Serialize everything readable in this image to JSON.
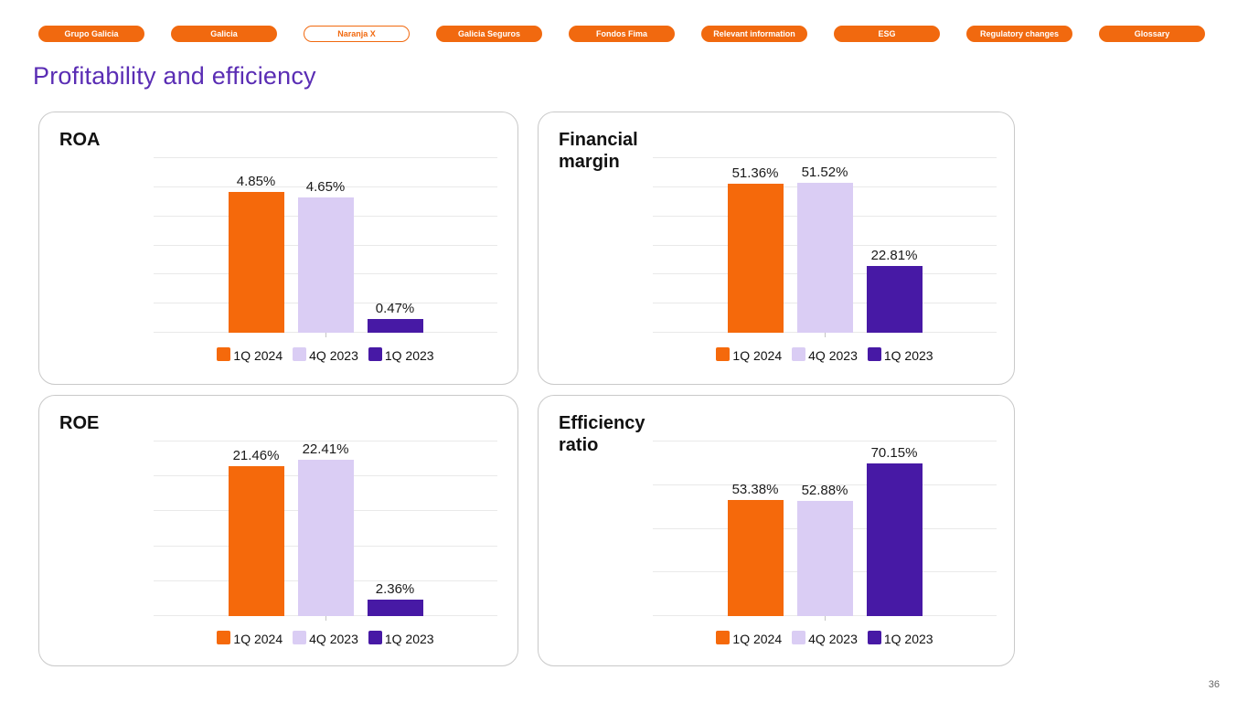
{
  "page": {
    "title": "Profitability and efficiency",
    "title_color": "#5A2DB4",
    "page_number": "36",
    "background": "#ffffff"
  },
  "nav": {
    "pill_fill_color": "#F1690F",
    "pill_text_color": "#ffffff",
    "items": [
      {
        "label": "Grupo Galicia",
        "style": "filled"
      },
      {
        "label": "Galicia",
        "style": "filled"
      },
      {
        "label": "Naranja X",
        "style": "outline"
      },
      {
        "label": "Galicia Seguros",
        "style": "filled"
      },
      {
        "label": "Fondos Fima",
        "style": "filled"
      },
      {
        "label": "Relevant information",
        "style": "filled"
      },
      {
        "label": "ESG",
        "style": "filled"
      },
      {
        "label": "Regulatory changes",
        "style": "filled"
      },
      {
        "label": "Glossary",
        "style": "filled"
      }
    ]
  },
  "colors": {
    "series": [
      "#F5690B",
      "#DACDF4",
      "#4719A5"
    ],
    "gridline": "#e9e9e9",
    "card_border": "#c9c9c9",
    "value_label": "#1a1a1a"
  },
  "chart_data": [
    {
      "type": "bar",
      "title": "ROA",
      "categories": [
        "1Q 2024",
        "4Q 2023",
        "1Q 2023"
      ],
      "values": [
        4.85,
        4.65,
        0.47
      ],
      "value_labels": [
        "4.85%",
        "4.65%",
        "0.47%"
      ],
      "ylim": [
        0,
        6
      ],
      "ytick_step": 1,
      "grid": true,
      "legend_position": "bottom"
    },
    {
      "type": "bar",
      "title": "Financial margin",
      "categories": [
        "1Q 2024",
        "4Q 2023",
        "1Q 2023"
      ],
      "values": [
        51.36,
        51.52,
        22.81
      ],
      "value_labels": [
        "51.36%",
        "51.52%",
        "22.81%"
      ],
      "ylim": [
        0,
        60
      ],
      "ytick_step": 10,
      "grid": true,
      "legend_position": "bottom"
    },
    {
      "type": "bar",
      "title": "ROE",
      "categories": [
        "1Q 2024",
        "4Q 2023",
        "1Q 2023"
      ],
      "values": [
        21.46,
        22.41,
        2.36
      ],
      "value_labels": [
        "21.46%",
        "22.41%",
        "2.36%"
      ],
      "ylim": [
        0,
        25
      ],
      "ytick_step": 5,
      "grid": true,
      "legend_position": "bottom"
    },
    {
      "type": "bar",
      "title": "Efficiency ratio",
      "categories": [
        "1Q 2024",
        "4Q 2023",
        "1Q 2023"
      ],
      "values": [
        53.38,
        52.88,
        70.15
      ],
      "value_labels": [
        "53.38%",
        "52.88%",
        "70.15%"
      ],
      "ylim": [
        0,
        80
      ],
      "ytick_step": 20,
      "grid": true,
      "legend_position": "bottom"
    }
  ]
}
